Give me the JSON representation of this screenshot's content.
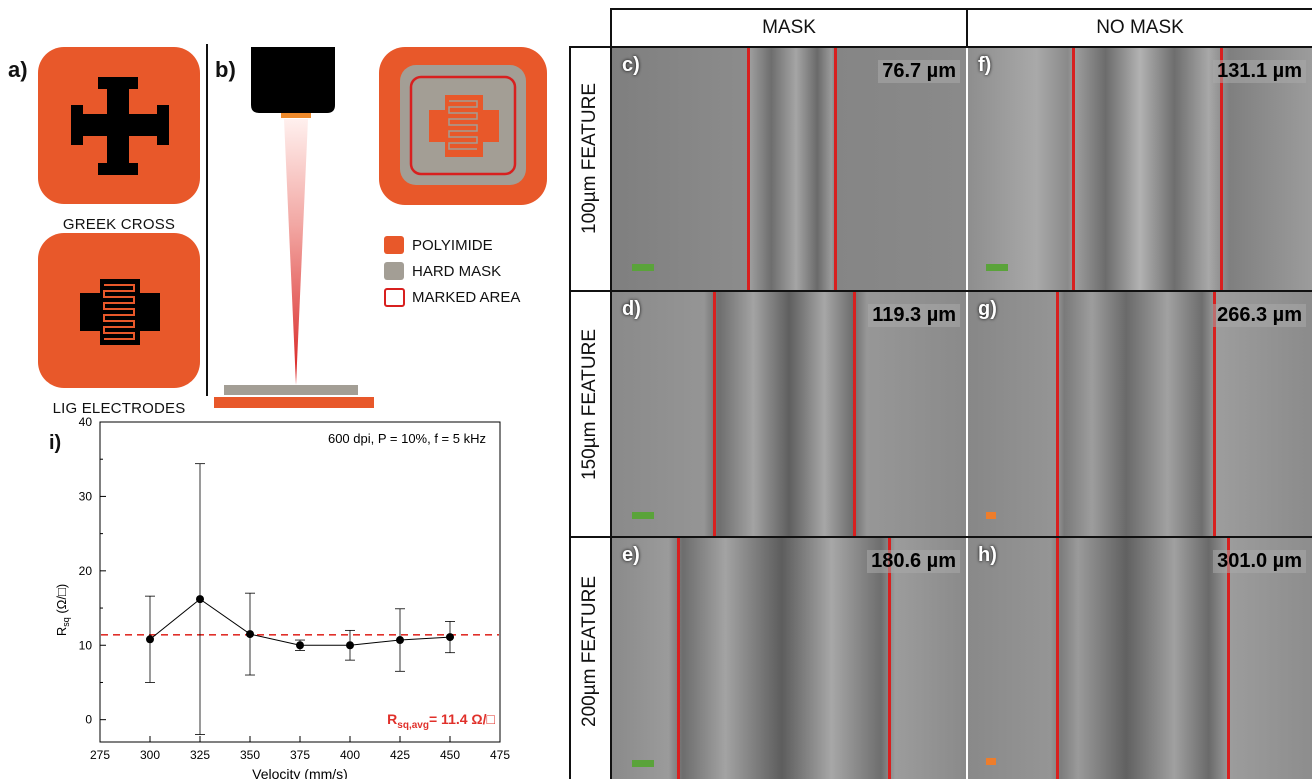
{
  "panel_a": {
    "letter": "a)",
    "caption_top": "GREEK CROSS",
    "caption_bottom": "LIG ELECTRODES"
  },
  "panel_b": {
    "letter": "b)",
    "legend": [
      {
        "label": "POLYIMIDE",
        "color": "#e8582a"
      },
      {
        "label": "HARD MASK",
        "color": "#a39e95"
      },
      {
        "label": "MARKED AREA",
        "color": "#d8201f"
      }
    ]
  },
  "grid": {
    "col_headers": [
      "MASK",
      "NO MASK"
    ],
    "row_labels": [
      "100µm FEATURE",
      "150µm FEATURE",
      "200µm FEATURE"
    ],
    "cells": [
      {
        "letter": "c)",
        "value": "76.7 µm",
        "scale_color": "#5aa33a"
      },
      {
        "letter": "f)",
        "value": "131.1 µm",
        "scale_color": "#5aa33a"
      },
      {
        "letter": "d)",
        "value": "119.3 µm",
        "scale_color": "#5aa33a"
      },
      {
        "letter": "g)",
        "value": "266.3 µm",
        "scale_color": "#ee7d2b"
      },
      {
        "letter": "e)",
        "value": "180.6 µm",
        "scale_color": "#5aa33a"
      },
      {
        "letter": "h)",
        "value": "301.0 µm",
        "scale_color": "#ee7d2b"
      }
    ]
  },
  "chart_data": {
    "type": "scatter",
    "panel_letter": "i)",
    "annotation": "600 dpi, P = 10%, f = 5 kHz",
    "xlabel": "Velocity (mm/s)",
    "ylabel": "R",
    "ylabel_sub": "sq",
    "ylabel_unit": " (Ω/□)",
    "xlim": [
      275,
      475
    ],
    "ylim": [
      -3,
      40
    ],
    "xticks": [
      275,
      300,
      325,
      350,
      375,
      400,
      425,
      450,
      475
    ],
    "yticks": [
      0,
      10,
      20,
      30,
      40
    ],
    "series": [
      {
        "x": [
          300,
          325,
          350,
          375,
          400,
          425,
          450
        ],
        "y": [
          10.8,
          16.2,
          11.5,
          10.0,
          10.0,
          10.7,
          11.1
        ],
        "err": [
          5.8,
          18.2,
          5.5,
          0.7,
          2.0,
          4.2,
          2.1
        ]
      }
    ],
    "reference_line": {
      "y": 11.4,
      "color": "#e0302a",
      "style": "dashed"
    },
    "avg_label_main": "R",
    "avg_label_sub": "sq,avg",
    "avg_label_rest": "= 11.4 Ω/□"
  }
}
